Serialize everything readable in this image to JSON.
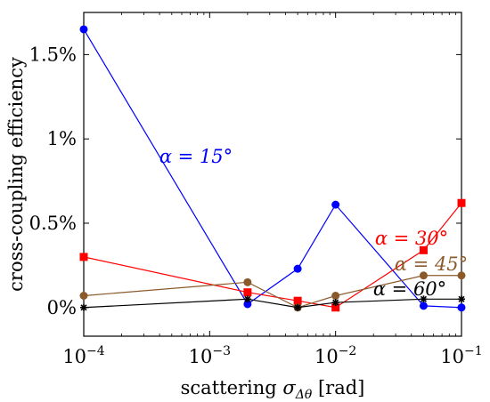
{
  "chart_data": {
    "type": "line",
    "xlabel": "scattering σΔθ [rad]",
    "ylabel": "cross-coupling efficiency",
    "x_scale": "log",
    "xlim": [
      0.0001,
      0.1
    ],
    "ylim": [
      -0.17,
      1.75
    ],
    "x_ticks": [
      {
        "value": 0.0001,
        "base": "10",
        "exp": "−4"
      },
      {
        "value": 0.001,
        "base": "10",
        "exp": "−3"
      },
      {
        "value": 0.01,
        "base": "10",
        "exp": "−2"
      },
      {
        "value": 0.1,
        "base": "10",
        "exp": "−1"
      }
    ],
    "y_ticks": [
      {
        "value": 0,
        "label": "0%"
      },
      {
        "value": 0.5,
        "label": "0.5%"
      },
      {
        "value": 1,
        "label": "1%"
      },
      {
        "value": 1.5,
        "label": "1.5%"
      }
    ],
    "x": [
      0.0001,
      0.002,
      0.005,
      0.01,
      0.05,
      0.1
    ],
    "series": [
      {
        "name": "α = 15°",
        "color": "#0000ff",
        "marker": "circle",
        "values": [
          1.65,
          0.02,
          0.23,
          0.61,
          0.01,
          0.0
        ]
      },
      {
        "name": "α = 30°",
        "color": "#ff0000",
        "marker": "square",
        "values": [
          0.3,
          0.09,
          0.04,
          0.0,
          0.34,
          0.62
        ]
      },
      {
        "name": "α = 45°",
        "color": "#8b5a2b",
        "marker": "circle",
        "values": [
          0.07,
          0.15,
          0.0,
          0.07,
          0.19,
          0.19
        ]
      },
      {
        "name": "α = 60°",
        "color": "#000000",
        "marker": "star",
        "values": [
          0.0,
          0.05,
          0.0,
          0.03,
          0.05,
          0.05
        ]
      }
    ],
    "legend": "inline annotations"
  }
}
